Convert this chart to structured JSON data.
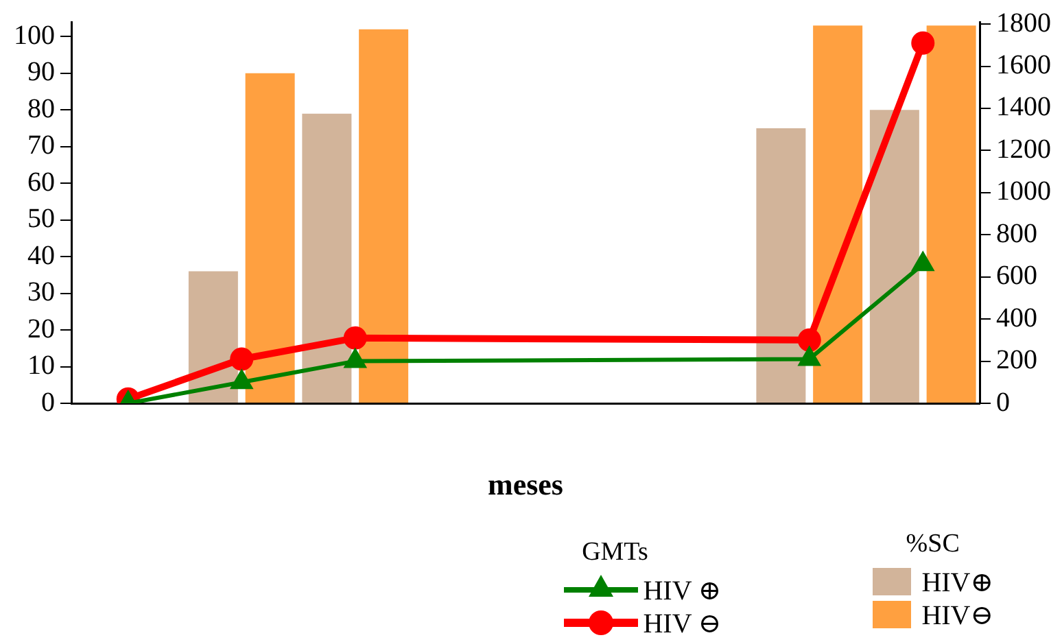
{
  "chart_data": {
    "type": "bar",
    "xlabel": "meses",
    "legend_title": "GMTs",
    "annotations": [
      "%SC"
    ],
    "categories": [
      null,
      null,
      null,
      null,
      null,
      null,
      null,
      null
    ],
    "series": [
      {
        "name": "HIV⊕",
        "color": "#d2b49a",
        "values": [
          null,
          36,
          79,
          null,
          null,
          null,
          75,
          80
        ]
      },
      {
        "name": "HIV⊖",
        "color": "#ffa040",
        "values": [
          null,
          90,
          102,
          null,
          null,
          null,
          103,
          103
        ]
      },
      {
        "name": "HIV ⊕",
        "type": "line",
        "axis": "y2",
        "marker": "triangle",
        "color": "#008000",
        "values": [
          0,
          100,
          200,
          null,
          null,
          null,
          210,
          660
        ]
      },
      {
        "name": "HIV ⊖",
        "type": "line",
        "axis": "y2",
        "marker": "circle",
        "color": "#ff0000",
        "values": [
          20,
          210,
          310,
          null,
          null,
          null,
          300,
          1710
        ]
      }
    ],
    "ylim": [
      0,
      104
    ],
    "yticks": [
      0,
      10,
      20,
      30,
      40,
      50,
      60,
      70,
      80,
      90,
      100
    ],
    "y2lim": [
      0,
      1810
    ],
    "y2ticks": [
      0,
      200,
      400,
      600,
      800,
      1000,
      1200,
      1400,
      1600,
      1800
    ],
    "grid": false,
    "legend": "bottom right"
  }
}
